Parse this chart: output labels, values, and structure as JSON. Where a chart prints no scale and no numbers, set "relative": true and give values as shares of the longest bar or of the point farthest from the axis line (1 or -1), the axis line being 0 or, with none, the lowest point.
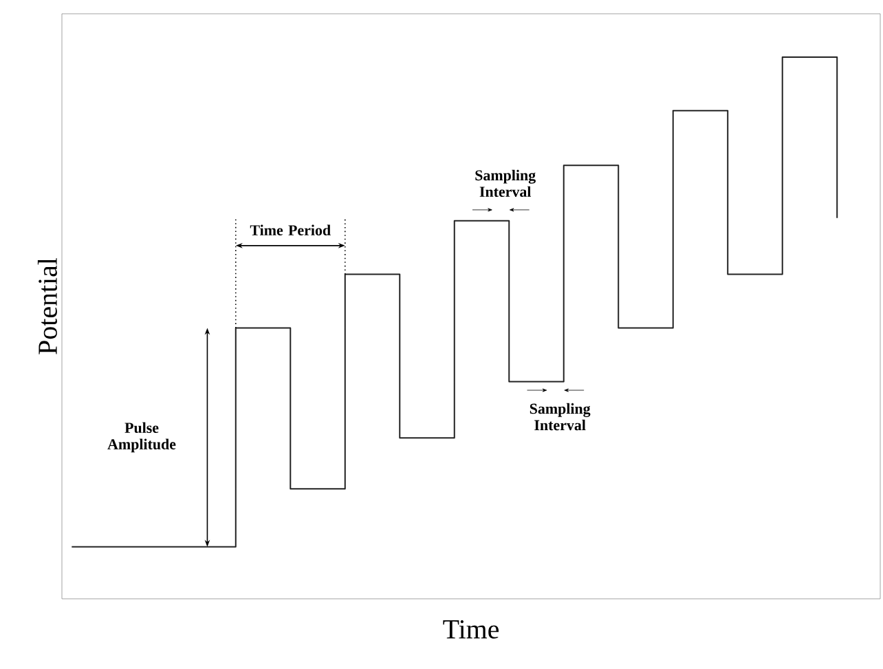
{
  "chart_data": {
    "type": "step",
    "relative": true,
    "xlabel": "Time",
    "ylabel": "Potential",
    "marker": "none",
    "line_style": "solid",
    "categories": [
      null,
      null,
      null,
      null,
      null,
      null,
      null,
      null,
      null,
      null,
      null,
      null,
      null,
      null,
      null
    ],
    "series": [
      {
        "color": "#222222",
        "values": [
          0.096,
          0.096,
          0.096,
          0.5,
          0.203,
          0.599,
          0.297,
          0.698,
          0.401,
          0.8,
          0.5,
          0.901,
          0.599,
          1,
          0.703
        ]
      }
    ],
    "annotations": [
      "Pulse Amplitude",
      "Time Period",
      "Sampling Interval",
      "Sampling Interval"
    ]
  }
}
